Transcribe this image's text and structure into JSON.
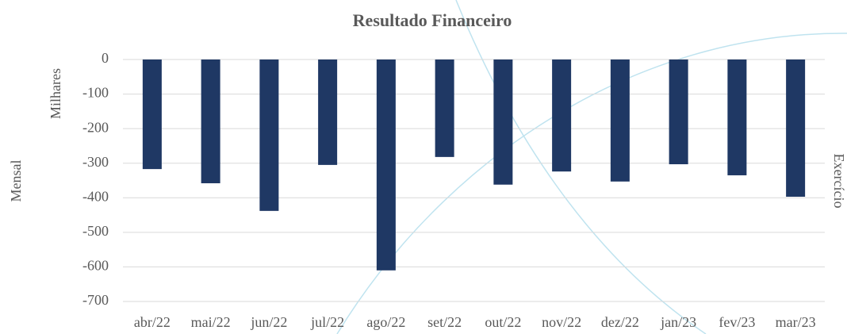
{
  "chart_data": {
    "type": "bar",
    "title": "Resultado Financeiro",
    "y_label": "Mensal",
    "y_units": "Milhares",
    "y2_label": "Exercício",
    "categories": [
      "abr/22",
      "mai/22",
      "jun/22",
      "jul/22",
      "ago/22",
      "set/22",
      "out/22",
      "nov/22",
      "dez/22",
      "jan/23",
      "fev/23",
      "mar/23"
    ],
    "values": [
      -317,
      -358,
      -438,
      -305,
      -610,
      -282,
      -362,
      -324,
      -353,
      -303,
      -335,
      -397
    ],
    "color": "#1f3864",
    "ylim": [
      -700,
      0
    ],
    "yticks": [
      0,
      -100,
      -200,
      -300,
      -400,
      -500,
      -600,
      -700
    ],
    "grid": true
  }
}
